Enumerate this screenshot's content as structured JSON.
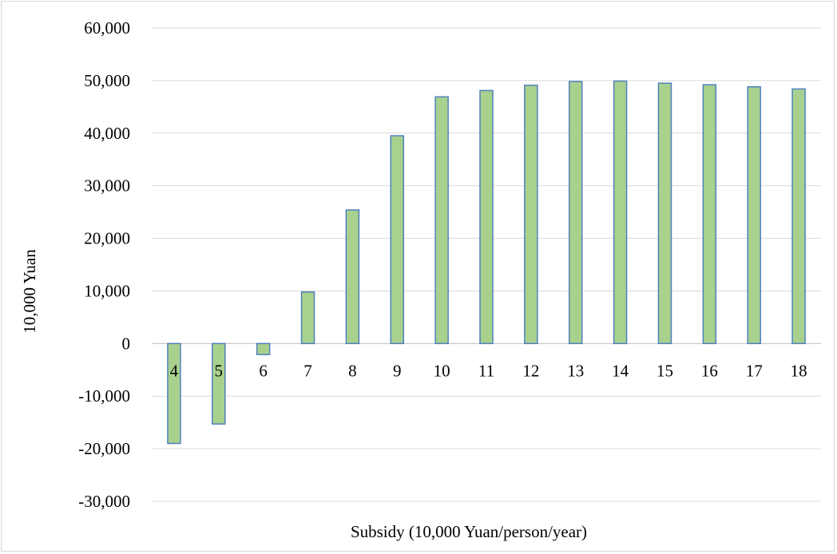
{
  "chart_data": {
    "type": "bar",
    "title": "",
    "xlabel": "Subsidy (10,000 Yuan/person/year)",
    "ylabel": "10,000 Yuan",
    "categories": [
      "4",
      "5",
      "6",
      "7",
      "8",
      "9",
      "10",
      "11",
      "12",
      "13",
      "14",
      "15",
      "16",
      "17",
      "18"
    ],
    "values": [
      -19000,
      -15300,
      -2100,
      9800,
      25400,
      39500,
      46900,
      48100,
      49100,
      49800,
      49900,
      49500,
      49200,
      48800,
      48400
    ],
    "ylim": [
      -30000,
      60000
    ],
    "yticks": [
      -30000,
      -20000,
      -10000,
      0,
      10000,
      20000,
      30000,
      40000,
      50000,
      60000
    ],
    "ytick_labels": [
      "-30,000",
      "-20,000",
      "-10,000",
      "0",
      "10,000",
      "20,000",
      "30,000",
      "40,000",
      "50,000",
      "60,000"
    ],
    "grid": "horizontal",
    "legend": "none",
    "colors": {
      "bar_fill": "#a9d18e",
      "bar_stroke": "#4f81bd",
      "grid": "#d9d9d9"
    }
  }
}
